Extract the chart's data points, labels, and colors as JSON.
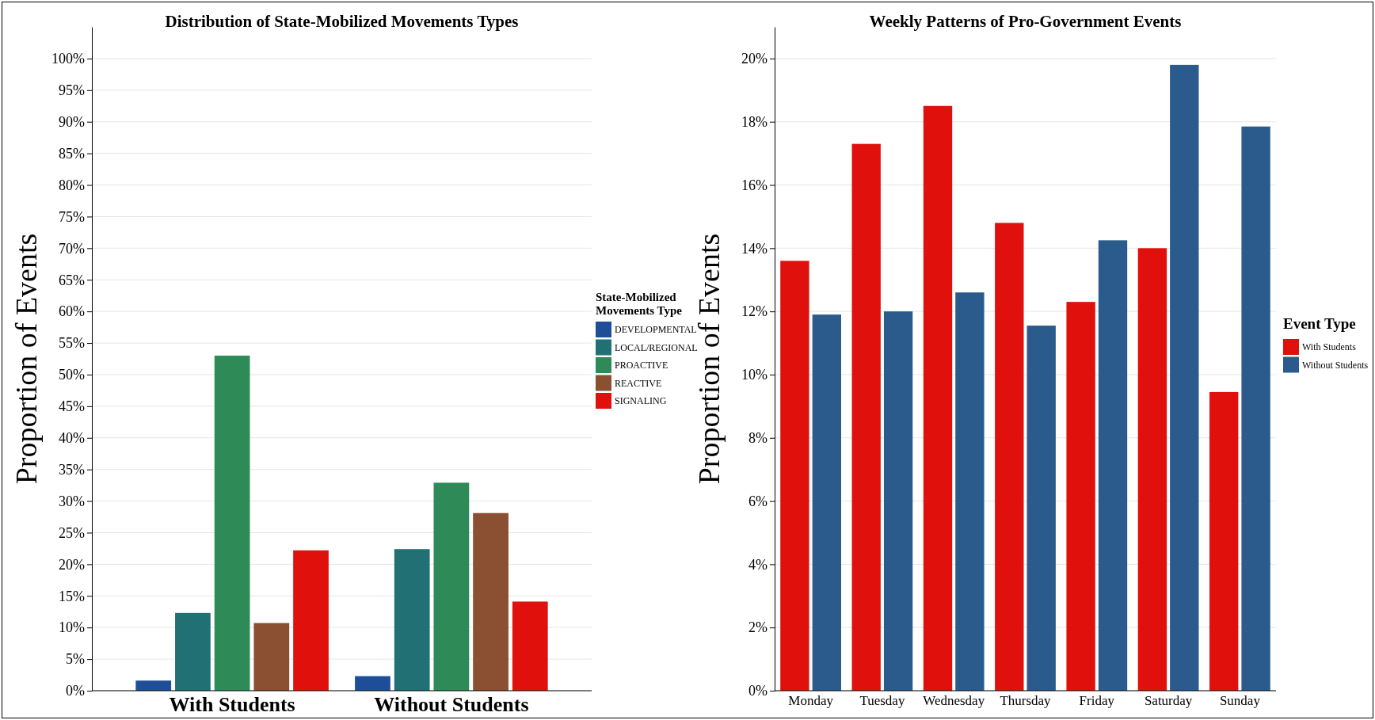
{
  "chart_data": [
    {
      "type": "bar",
      "title": "Distribution of State-Mobilized Movements Types",
      "ylabel": "Proportion of Events",
      "legend_title": "State-Mobilized\nMovements Type",
      "legend": "right",
      "grid": "y",
      "categories": [
        "With Students",
        "Without Students"
      ],
      "ylim": [
        0,
        105
      ],
      "yticks": [
        {
          "value": 0,
          "label": "0%"
        },
        {
          "value": 5,
          "label": "5%"
        },
        {
          "value": 10,
          "label": "10%"
        },
        {
          "value": 15,
          "label": "15%"
        },
        {
          "value": 20,
          "label": "20%"
        },
        {
          "value": 25,
          "label": "25%"
        },
        {
          "value": 30,
          "label": "30%"
        },
        {
          "value": 35,
          "label": "35%"
        },
        {
          "value": 40,
          "label": "40%"
        },
        {
          "value": 45,
          "label": "45%"
        },
        {
          "value": 50,
          "label": "50%"
        },
        {
          "value": 55,
          "label": "55%"
        },
        {
          "value": 60,
          "label": "60%"
        },
        {
          "value": 65,
          "label": "65%"
        },
        {
          "value": 70,
          "label": "70%"
        },
        {
          "value": 75,
          "label": "75%"
        },
        {
          "value": 80,
          "label": "80%"
        },
        {
          "value": 85,
          "label": "85%"
        },
        {
          "value": 90,
          "label": "90%"
        },
        {
          "value": 95,
          "label": "95%"
        },
        {
          "value": 100,
          "label": "100%"
        }
      ],
      "series": [
        {
          "name": "DEVELOPMENTAL",
          "color": "#1f4e99",
          "values": [
            1.6,
            2.3
          ]
        },
        {
          "name": "LOCAL/REGIONAL",
          "color": "#217073",
          "values": [
            12.3,
            22.4
          ]
        },
        {
          "name": "PROACTIVE",
          "color": "#2e8b57",
          "values": [
            53,
            32.9
          ]
        },
        {
          "name": "REACTIVE",
          "color": "#8b4f32",
          "values": [
            10.7,
            28.1
          ]
        },
        {
          "name": "SIGNALING",
          "color": "#e0100d",
          "values": [
            22.2,
            14.1
          ]
        }
      ]
    },
    {
      "type": "bar",
      "title": "Weekly Patterns of Pro-Government Events",
      "ylabel": "Proportion of Events",
      "legend_title": "Event Type",
      "legend": "right",
      "grid": "y",
      "categories": [
        "Monday",
        "Tuesday",
        "Wednesday",
        "Thursday",
        "Friday",
        "Saturday",
        "Sunday"
      ],
      "ylim": [
        0,
        21
      ],
      "yticks": [
        {
          "value": 0,
          "label": "0%"
        },
        {
          "value": 2,
          "label": "2%"
        },
        {
          "value": 4,
          "label": "4%"
        },
        {
          "value": 6,
          "label": "6%"
        },
        {
          "value": 8,
          "label": "8%"
        },
        {
          "value": 10,
          "label": "10%"
        },
        {
          "value": 12,
          "label": "12%"
        },
        {
          "value": 14,
          "label": "14%"
        },
        {
          "value": 16,
          "label": "16%"
        },
        {
          "value": 18,
          "label": "18%"
        },
        {
          "value": 20,
          "label": "20%"
        }
      ],
      "series": [
        {
          "name": "With Students",
          "color": "#e0100d",
          "values": [
            13.6,
            17.3,
            18.5,
            14.8,
            12.3,
            14.0,
            9.45
          ]
        },
        {
          "name": "Without Students",
          "color": "#2a5b8c",
          "values": [
            11.9,
            12.0,
            12.6,
            11.55,
            14.25,
            19.8,
            17.85
          ]
        }
      ]
    }
  ]
}
